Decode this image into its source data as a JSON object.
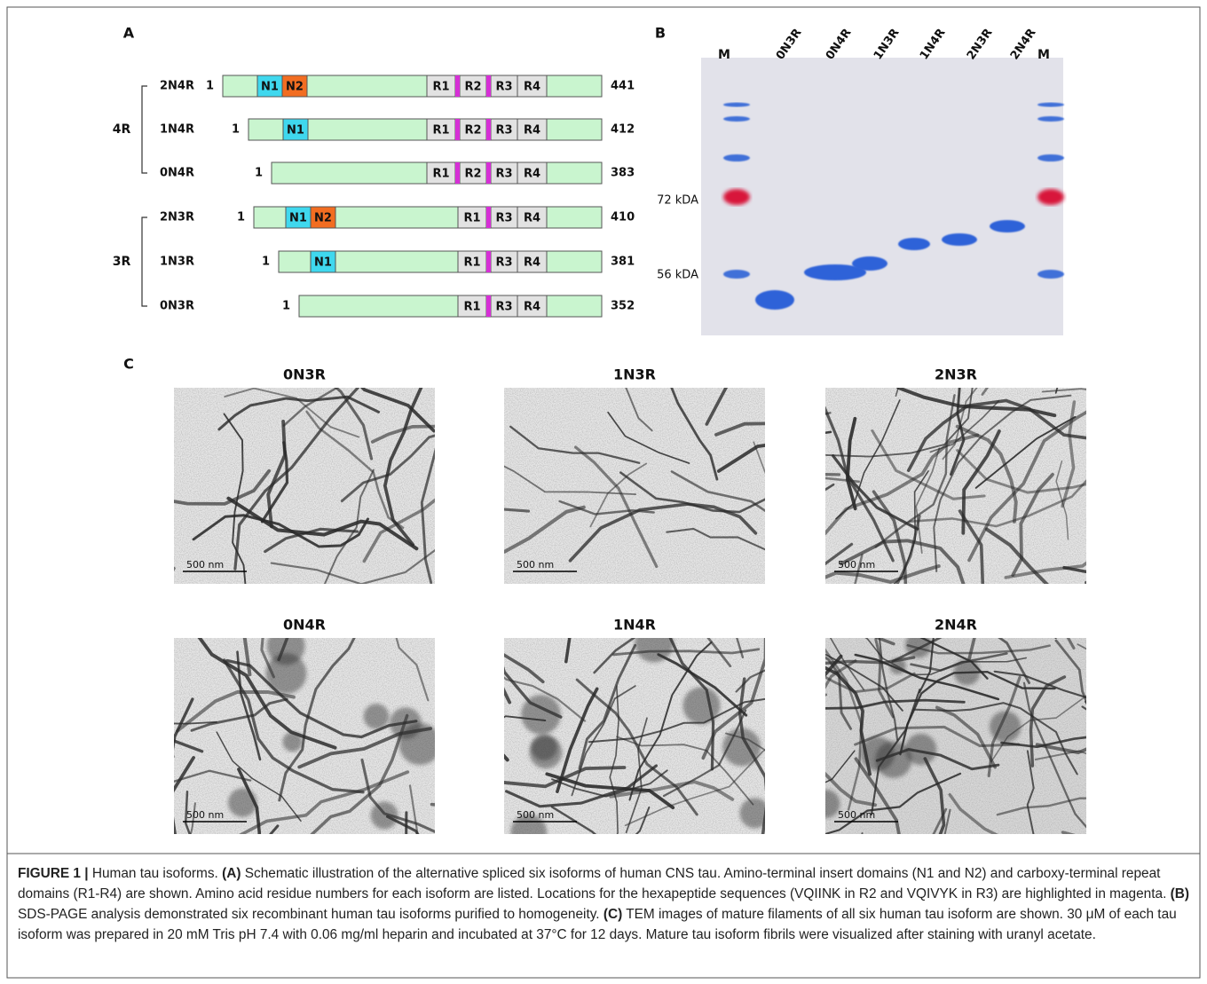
{
  "panel_a": {
    "label": "A",
    "groups": [
      {
        "name": "4R",
        "rows": [
          {
            "isoform": "2N4R",
            "start": "1",
            "end": "441",
            "domains": [
              "N1",
              "N2",
              "R1",
              "R2",
              "R3",
              "R4"
            ]
          },
          {
            "isoform": "1N4R",
            "start": "1",
            "end": "412",
            "domains": [
              "N1",
              "R1",
              "R2",
              "R3",
              "R4"
            ]
          },
          {
            "isoform": "0N4R",
            "start": "1",
            "end": "383",
            "domains": [
              "R1",
              "R2",
              "R3",
              "R4"
            ]
          }
        ]
      },
      {
        "name": "3R",
        "rows": [
          {
            "isoform": "2N3R",
            "start": "1",
            "end": "410",
            "domains": [
              "N1",
              "N2",
              "R1",
              "R3",
              "R4"
            ]
          },
          {
            "isoform": "1N3R",
            "start": "1",
            "end": "381",
            "domains": [
              "N1",
              "R1",
              "R3",
              "R4"
            ]
          },
          {
            "isoform": "0N3R",
            "start": "1",
            "end": "352",
            "domains": [
              "R1",
              "R3",
              "R4"
            ]
          }
        ]
      }
    ]
  },
  "panel_b": {
    "label": "B",
    "lanes": [
      "M",
      "0N3R",
      "0N4R",
      "1N3R",
      "1N4R",
      "2N3R",
      "2N4R",
      "M"
    ],
    "markers": [
      "72 kDA",
      "56 kDA"
    ]
  },
  "panel_c": {
    "label": "C",
    "images": [
      {
        "title": "0N3R",
        "scale": "500 nm"
      },
      {
        "title": "1N3R",
        "scale": "500 nm"
      },
      {
        "title": "2N3R",
        "scale": "500 nm"
      },
      {
        "title": "0N4R",
        "scale": "500 nm"
      },
      {
        "title": "1N4R",
        "scale": "500 nm"
      },
      {
        "title": "2N4R",
        "scale": "500 nm"
      }
    ]
  },
  "caption": {
    "label": "FIGURE 1 |",
    "intro": "Human tau isoforms.",
    "sections": [
      {
        "label": "(A)",
        "text": "Schematic illustration of the alternative spliced six isoforms of human CNS tau. Amino-terminal insert domains (N1 and N2) and carboxy-terminal repeat domains (R1-R4) are shown. Amino acid residue numbers for each isoform are listed. Locations for the hexapeptide sequences (VQIINK in R2 and VQIVYK in R3) are highlighted in magenta."
      },
      {
        "label": "(B)",
        "text": "SDS-PAGE analysis demonstrated six recombinant human tau isoforms purified to homogeneity."
      },
      {
        "label": "(C)",
        "text": "TEM images of mature filaments of all six human tau isoform are shown. 30 μM of each tau isoform was prepared in 20 mM Tris pH 7.4 with 0.06 mg/ml heparin and incubated at 37°C for 12 days. Mature tau isoform fibrils were visualized after staining with uranyl acetate."
      }
    ]
  }
}
